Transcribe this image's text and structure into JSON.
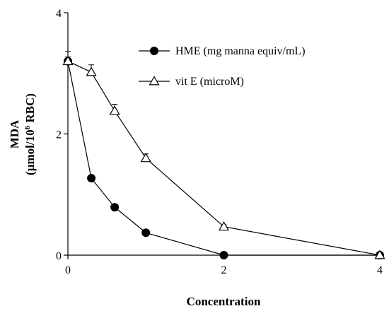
{
  "chart_data": {
    "type": "line",
    "xlabel": "Concentration",
    "ylabel_line1": "MDA",
    "ylabel_line2_prefix": "(µmol/10",
    "ylabel_line2_sup": "6",
    "ylabel_line2_suffix": " RBC)",
    "xlim": [
      0,
      4
    ],
    "ylim": [
      0,
      4
    ],
    "x_ticks": [
      0,
      2,
      4
    ],
    "y_ticks": [
      0,
      2,
      4
    ],
    "grid": false,
    "legend_position": "top-right",
    "series": [
      {
        "name": "HME (mg manna equiv/mL)",
        "marker": "circle-filled",
        "x": [
          0,
          0.3,
          0.6,
          1,
          2,
          4
        ],
        "y": [
          3.2,
          1.27,
          0.79,
          0.37,
          0.0,
          0.0
        ],
        "err": [
          0.07,
          0.04,
          0.03,
          0.03,
          0.0,
          0.0
        ]
      },
      {
        "name": "vit E (microM)",
        "marker": "triangle-open",
        "x": [
          0,
          0.3,
          0.6,
          1,
          2,
          4
        ],
        "y": [
          3.2,
          3.02,
          2.38,
          1.6,
          0.47,
          0.0
        ],
        "err": [
          0.16,
          0.12,
          0.11,
          0.07,
          0.03,
          0.0
        ]
      }
    ]
  }
}
